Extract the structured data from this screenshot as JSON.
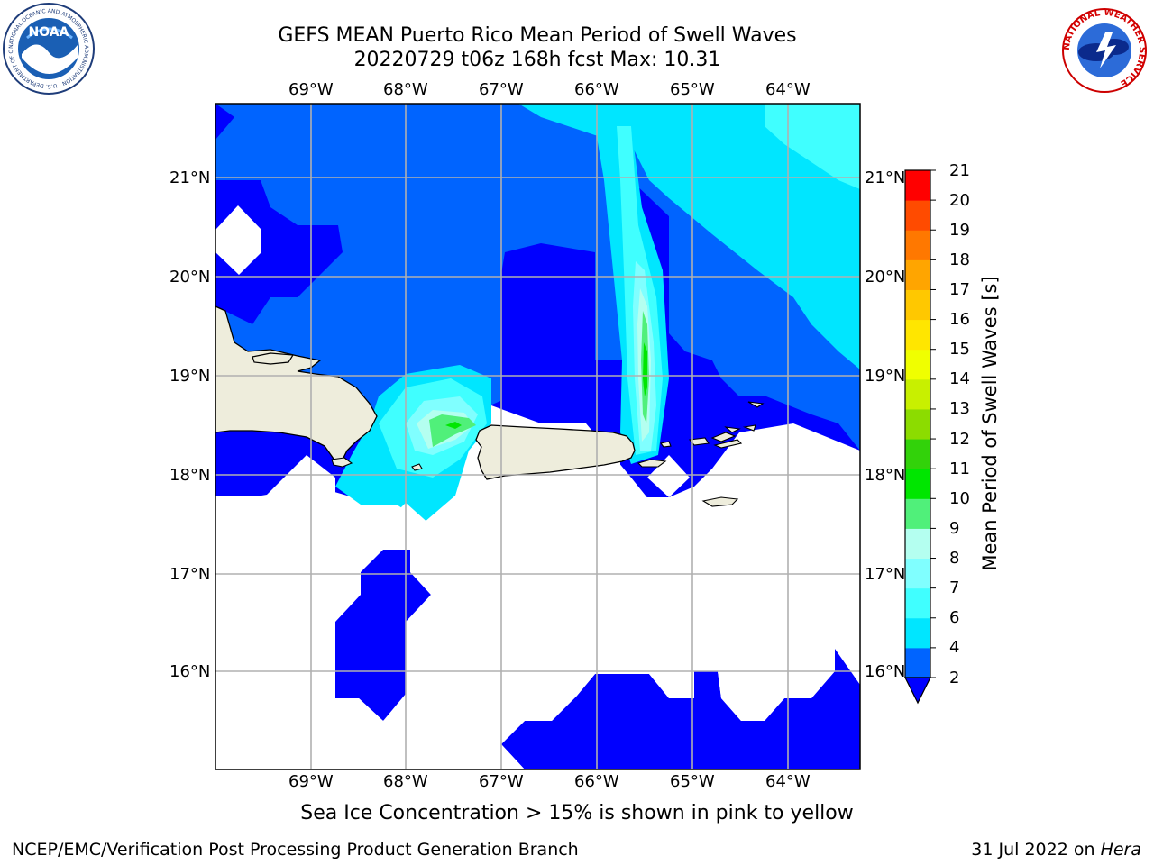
{
  "title_line1": "GEFS MEAN Puerto Rico Mean Period of Swell Waves",
  "title_line2": "20220729 t06z 168h fcst   Max: 10.31",
  "lon_ticks": [
    "69°W",
    "68°W",
    "67°W",
    "66°W",
    "65°W",
    "64°W"
  ],
  "lat_ticks": [
    "21°N",
    "20°N",
    "19°N",
    "18°N",
    "17°N",
    "16°N"
  ],
  "colorbar": {
    "label": "Mean Period of Swell Waves [s]",
    "levels": [
      "2",
      "4",
      "6",
      "7",
      "8",
      "9",
      "10",
      "11",
      "12",
      "13",
      "14",
      "15",
      "16",
      "17",
      "18",
      "19",
      "20",
      "21"
    ],
    "colors": [
      "#0064ff",
      "#00e6ff",
      "#40ffff",
      "#80ffff",
      "#b4fff0",
      "#50f07a",
      "#00e600",
      "#32d20a",
      "#8cdc00",
      "#c8f000",
      "#f0ff00",
      "#ffe600",
      "#ffc800",
      "#ffa500",
      "#ff7800",
      "#ff4b00",
      "#ff0000"
    ],
    "extend_below_color": "#0000ff"
  },
  "caption": "Sea Ice Concentration > 15% is shown in pink to yellow",
  "footer_left": "NCEP/EMC/Verification Post Processing Product Generation Branch",
  "footer_date": "31 Jul 2022 on ",
  "footer_host": "Hera",
  "logos": {
    "noaa": "NOAA",
    "noaa_ring": "NATIONAL OCEANIC AND ATMOSPHERIC ADMINISTRATION · U.S. DEPARTMENT OF COMMERCE",
    "nws_ring": "NATIONAL WEATHER SERVICE"
  },
  "colors": {
    "land": "#eeeddc",
    "no_data": "#ffffff",
    "grid": "#b0b0b0"
  }
}
